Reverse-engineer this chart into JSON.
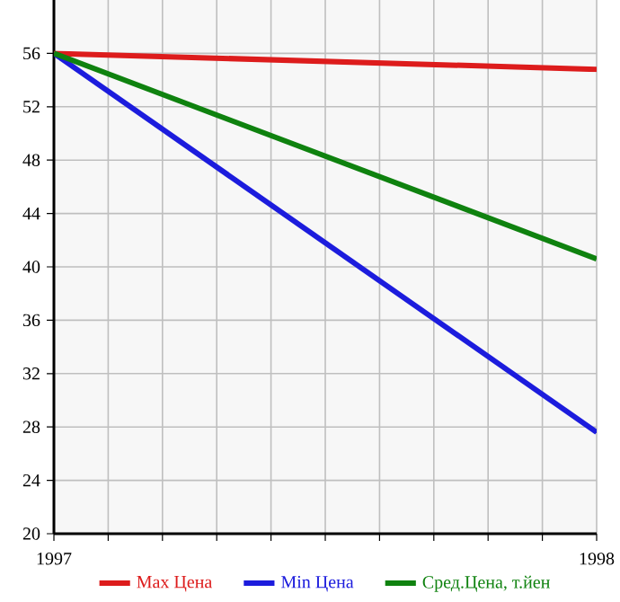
{
  "chart_data": {
    "type": "line",
    "x": [
      1997,
      1998
    ],
    "series": [
      {
        "name": "Max Цена",
        "color": "#dd1c1c",
        "values": [
          56,
          54.8
        ]
      },
      {
        "name": "Min Цена",
        "color": "#1c1cdd",
        "values": [
          56,
          27.6
        ]
      },
      {
        "name": "Сред.Цена, т.йен",
        "color": "#0f820f",
        "values": [
          56,
          40.6
        ]
      }
    ],
    "xlim": [
      1997,
      1998
    ],
    "xticks": [
      1997,
      {
        "value": 1997.1,
        "label": null
      },
      {
        "value": 1997.2,
        "label": null
      },
      {
        "value": 1997.3,
        "label": null
      },
      {
        "value": 1997.4,
        "label": null
      },
      {
        "value": 1997.5,
        "label": null
      },
      {
        "value": 1997.6,
        "label": null
      },
      {
        "value": 1997.7,
        "label": null
      },
      {
        "value": 1997.8,
        "label": null
      },
      {
        "value": 1997.9,
        "label": null
      },
      1998
    ],
    "ylim": [
      20,
      60
    ],
    "yticks": [
      20,
      24,
      28,
      32,
      36,
      40,
      44,
      48,
      52,
      56
    ],
    "grid": true,
    "legend": "bottom",
    "marker": "none",
    "line_style": "solid"
  }
}
